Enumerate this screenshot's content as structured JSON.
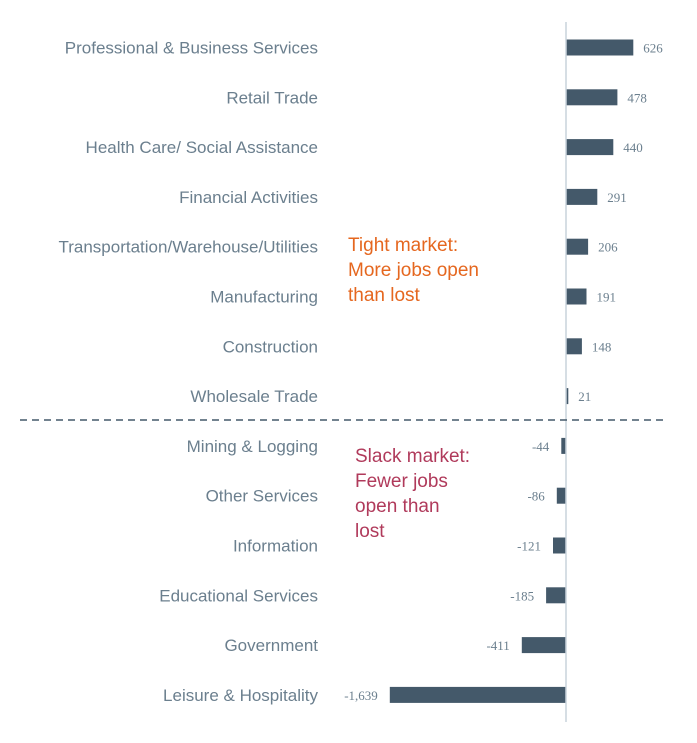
{
  "chart_data": {
    "type": "bar",
    "orientation": "horizontal",
    "categories": [
      "Professional & Business Services",
      "Retail Trade",
      "Health Care/ Social Assistance",
      "Financial Activities",
      "Transportation/Warehouse/Utilities",
      "Manufacturing",
      "Construction",
      "Wholesale Trade",
      "Mining & Logging",
      "Other Services",
      "Information",
      "Educational Services",
      "Government",
      "Leisure & Hospitality"
    ],
    "values": [
      626,
      478,
      440,
      291,
      206,
      191,
      148,
      21,
      -44,
      -86,
      -121,
      -185,
      -411,
      -1639
    ],
    "value_labels": [
      "626",
      "478",
      "440",
      "291",
      "206",
      "191",
      "148",
      "21",
      "-44",
      "-86",
      "-121",
      "-185",
      "-411",
      "-1,639"
    ],
    "bar_color": "#44596a",
    "divider_after_category": "Wholesale Trade",
    "annotations": {
      "tight": {
        "lines": [
          "Tight market:",
          "More jobs open",
          "than lost"
        ],
        "color": "#e5671f"
      },
      "slack": {
        "lines": [
          "Slack market:",
          "Fewer jobs",
          "open than",
          "lost"
        ],
        "color": "#b03a5b"
      }
    }
  }
}
